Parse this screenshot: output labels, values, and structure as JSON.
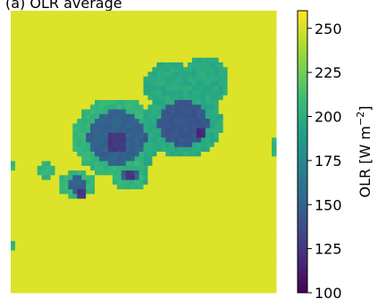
{
  "caption": "(a) OLR average",
  "chart_data": {
    "type": "heatmap",
    "title": "",
    "colorbar": {
      "label": "OLR [W m⁻²]",
      "label_base": "OLR [W m",
      "label_sup": "−2",
      "label_tail": "]",
      "range": [
        100,
        260
      ],
      "ticks": [
        100,
        125,
        150,
        175,
        200,
        225,
        250
      ],
      "tick_labels": [
        "100",
        "125",
        "150",
        "175",
        "200",
        "225",
        "250"
      ],
      "colormap": "viridis"
    },
    "grid": {
      "nx": 60,
      "ny": 60
    },
    "background_value": 252,
    "features": [
      {
        "kind": "cloud-band",
        "value": 205,
        "note": "outer edge"
      },
      {
        "kind": "cloud-core",
        "value": 150
      },
      {
        "kind": "deep-core",
        "value": 125
      }
    ]
  }
}
